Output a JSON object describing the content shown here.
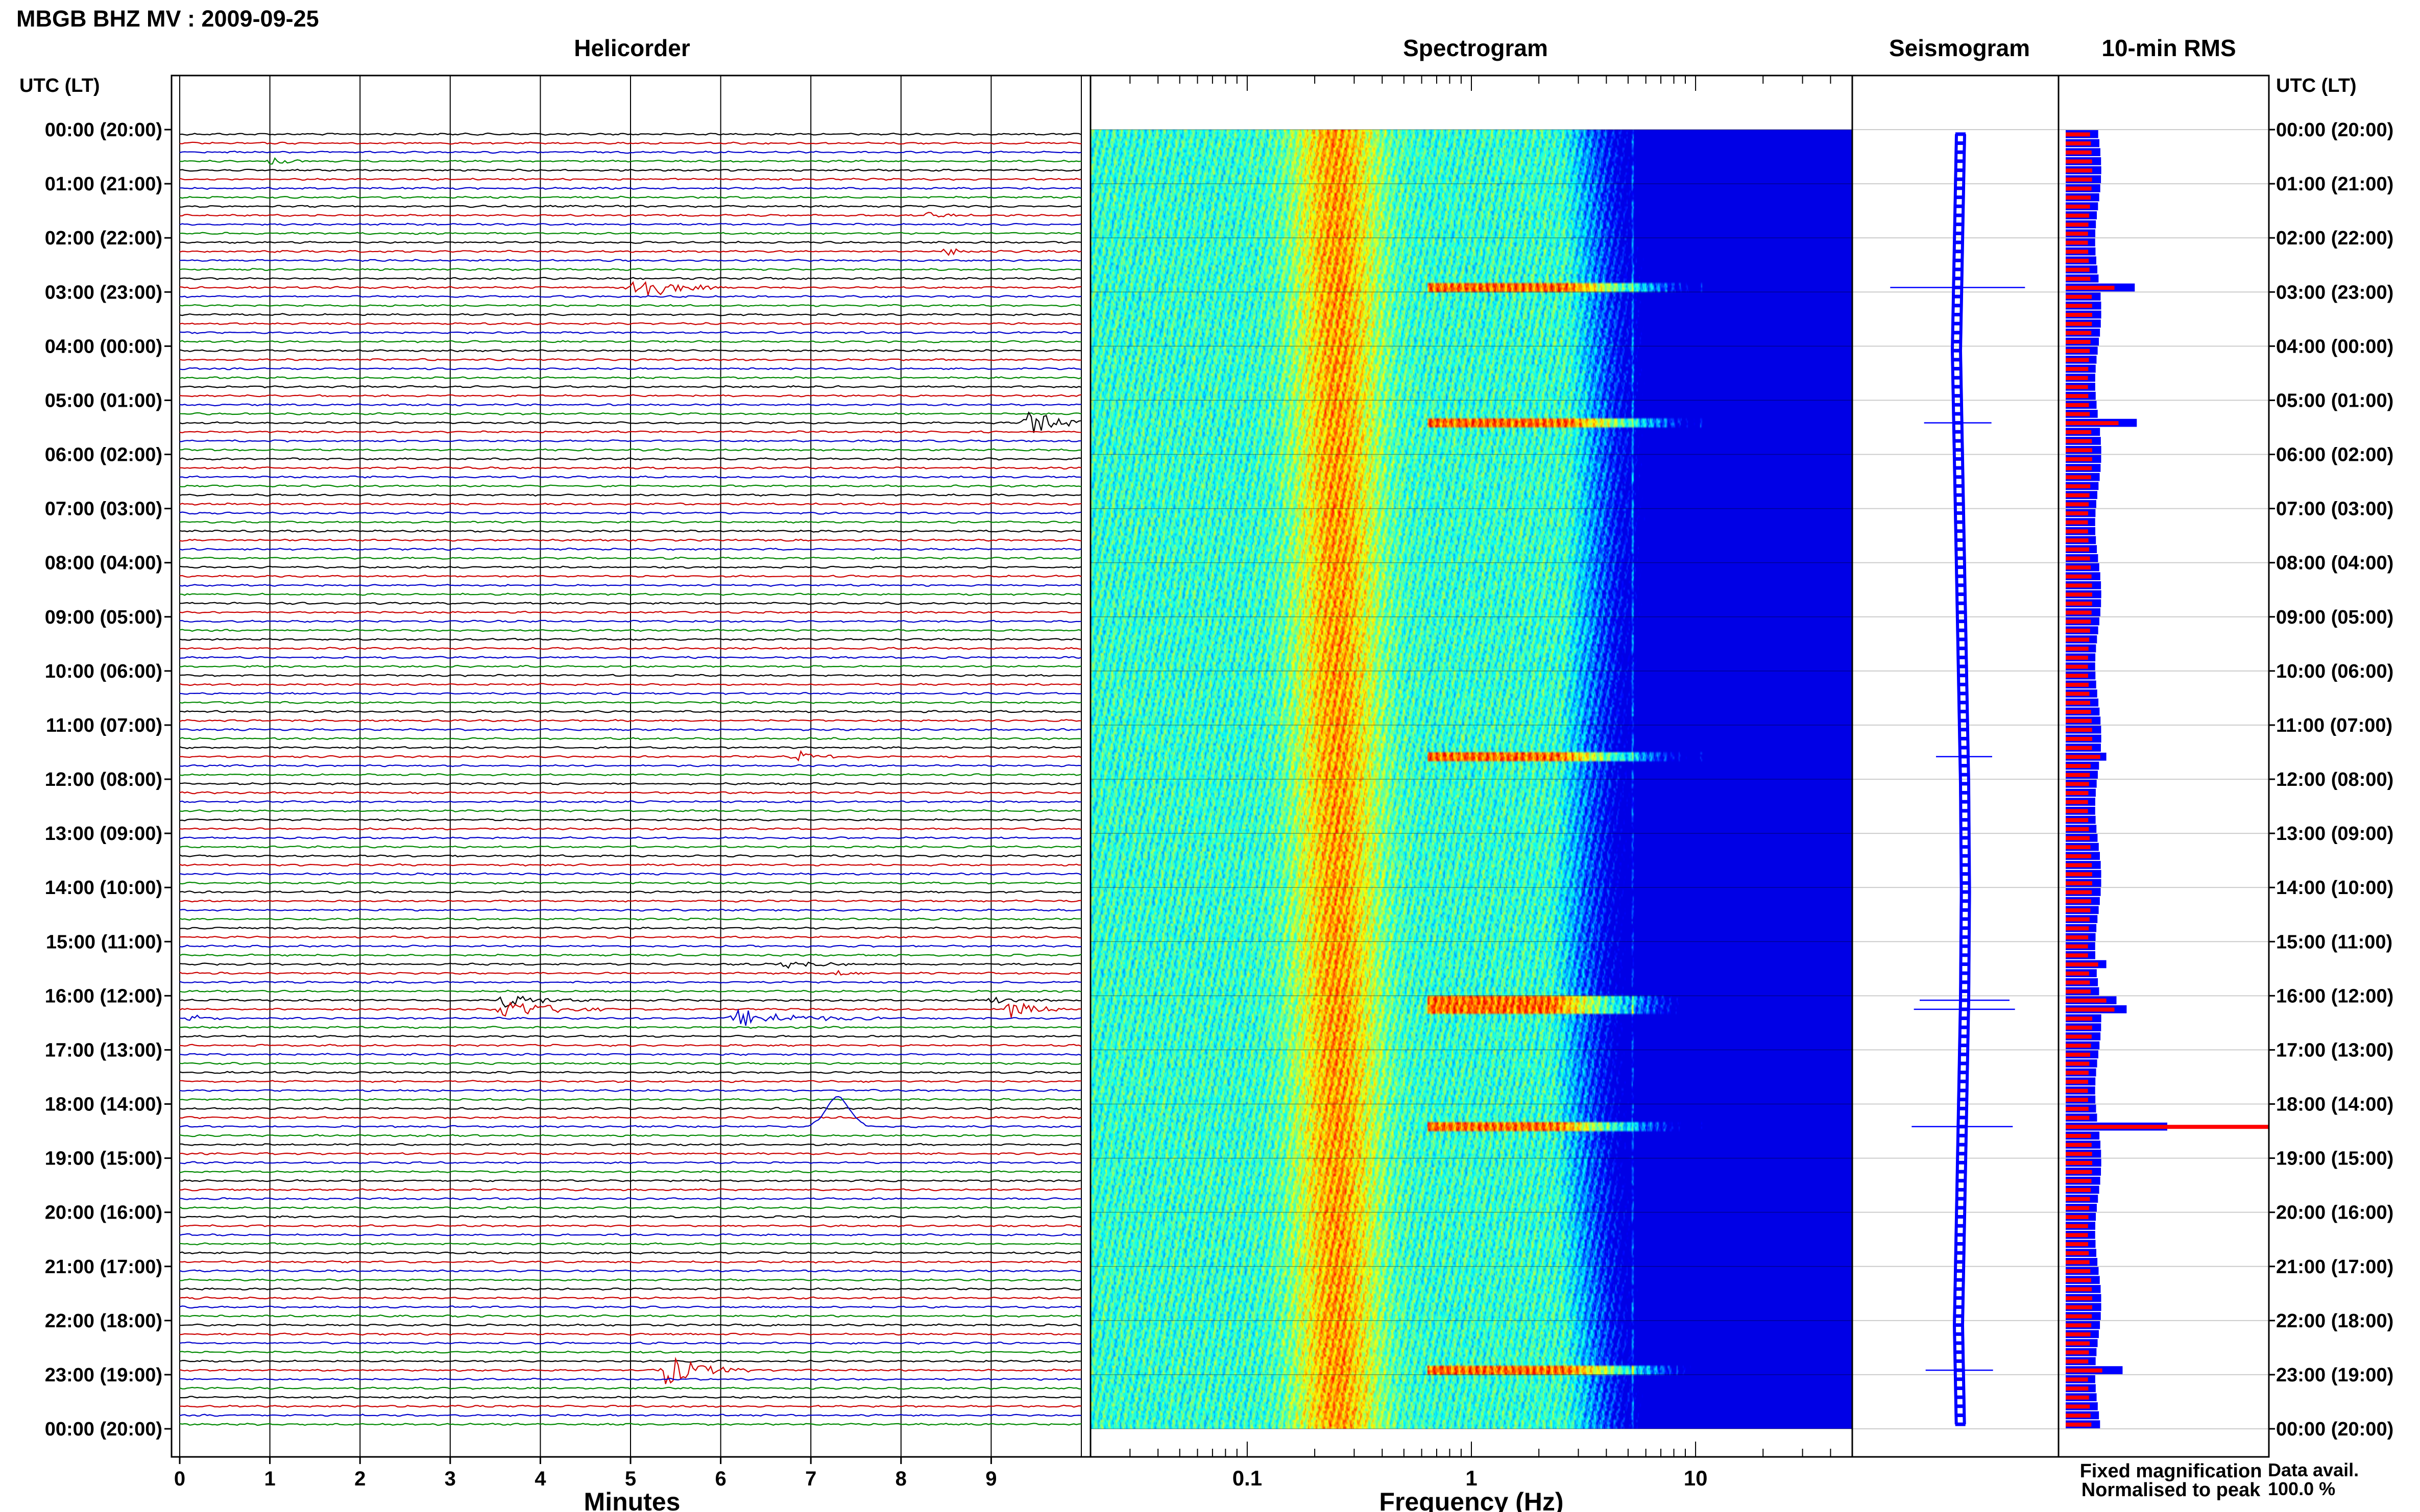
{
  "figure": {
    "title": "MBGB BHZ MV : 2009-09-25",
    "utc_header_left": "UTC (LT)",
    "utc_header_right": "UTC (LT)",
    "legend": {
      "fixed": "Fixed magnification",
      "normalised": "Normalised to peak",
      "fixed_color": "#0000ff",
      "normalised_color": "#ff0000"
    },
    "data_avail_label": "Data avail.",
    "data_avail_value": "100.0 %"
  },
  "chart_data": [
    {
      "type": "line",
      "panel": "helicorder",
      "title": "Helicorder",
      "xlabel": "Minutes",
      "xlim": [
        0,
        10
      ],
      "xticks": [
        "0",
        "1",
        "2",
        "3",
        "4",
        "5",
        "6",
        "7",
        "8",
        "9"
      ],
      "time_labels": [
        "00:00 (20:00)",
        "01:00 (21:00)",
        "02:00 (22:00)",
        "03:00 (23:00)",
        "04:00 (00:00)",
        "05:00 (01:00)",
        "06:00 (02:00)",
        "07:00 (03:00)",
        "08:00 (04:00)",
        "09:00 (05:00)",
        "10:00 (06:00)",
        "11:00 (07:00)",
        "12:00 (08:00)",
        "13:00 (09:00)",
        "14:00 (10:00)",
        "15:00 (11:00)",
        "16:00 (12:00)",
        "17:00 (13:00)",
        "18:00 (14:00)",
        "19:00 (15:00)",
        "20:00 (16:00)",
        "21:00 (17:00)",
        "22:00 (18:00)",
        "23:00 (19:00)",
        "00:00 (20:00)"
      ],
      "trace_colors": [
        "#000000",
        "#cc0000",
        "#0000cc",
        "#008800"
      ],
      "n_traces": 144,
      "events": [
        {
          "trace": 3,
          "minute": 1.0,
          "amp": 0.3,
          "dur": 0.5
        },
        {
          "trace": 9,
          "minute": 8.3,
          "amp": 0.2,
          "dur": 0.6
        },
        {
          "trace": 13,
          "minute": 8.5,
          "amp": 0.3,
          "dur": 0.7
        },
        {
          "trace": 17,
          "minute": 5.0,
          "amp": 1.5,
          "dur": 1.0
        },
        {
          "trace": 32,
          "minute": 9.4,
          "amp": 1.0,
          "dur": 1.1
        },
        {
          "trace": 69,
          "minute": 6.8,
          "amp": 0.9,
          "dur": 0.5
        },
        {
          "trace": 92,
          "minute": 6.7,
          "amp": 0.4,
          "dur": 0.8
        },
        {
          "trace": 93,
          "minute": 7.2,
          "amp": 0.3,
          "dur": 0.6
        },
        {
          "trace": 96,
          "minute": 3.6,
          "amp": 0.6,
          "dur": 1.0
        },
        {
          "trace": 96,
          "minute": 9.0,
          "amp": 0.4,
          "dur": 0.7
        },
        {
          "trace": 97,
          "minute": 3.6,
          "amp": 1.0,
          "dur": 1.2
        },
        {
          "trace": 97,
          "minute": 9.2,
          "amp": 0.8,
          "dur": 0.8
        },
        {
          "trace": 98,
          "minute": 0.1,
          "amp": 0.5,
          "dur": 0.4
        },
        {
          "trace": 98,
          "minute": 6.2,
          "amp": 0.8,
          "dur": 1.6
        },
        {
          "trace": 137,
          "minute": 5.4,
          "amp": 1.4,
          "dur": 1.0
        }
      ],
      "pulse": {
        "trace": 110,
        "minute": 7.3,
        "height": 1.0
      }
    },
    {
      "type": "heatmap",
      "panel": "spectrogram",
      "title": "Spectrogram",
      "xlabel": "Frequency (Hz)",
      "xscale": "log",
      "xlim": [
        0.02,
        50
      ],
      "xtick_labels": [
        "0.1",
        "1",
        "10"
      ],
      "colormap": "jet",
      "features": {
        "microseism_peak_hz": 0.25,
        "noise_rolloff_hz": 2.5,
        "spectral_lines_hz": [
          10.5,
          12.0,
          5.2
        ],
        "bright_rows": [
          17,
          32,
          69,
          96,
          97,
          110,
          137
        ]
      }
    },
    {
      "type": "line",
      "panel": "seismogram",
      "title": "Seismogram",
      "description_free": true,
      "drift": [
        0,
        -0.05,
        -0.1,
        -0.05,
        0.0,
        0.05,
        0.1,
        0.12,
        0.1,
        0.05,
        0.0,
        -0.05,
        0.0
      ],
      "spikes": [
        {
          "trace": 17,
          "width": 1.2
        },
        {
          "trace": 32,
          "width": 0.6
        },
        {
          "trace": 69,
          "width": 0.5
        },
        {
          "trace": 96,
          "width": 0.8
        },
        {
          "trace": 97,
          "width": 0.9
        },
        {
          "trace": 110,
          "width": 0.9
        },
        {
          "trace": 137,
          "width": 0.6
        }
      ]
    },
    {
      "type": "bar",
      "panel": "rms",
      "title": "10-min RMS",
      "orientation": "horizontal",
      "n_bars": 144,
      "baseline_fixed": 0.16,
      "baseline_normalised": 0.12,
      "peaks": [
        {
          "trace": 17,
          "fixed": 0.34,
          "normalised": 0.24
        },
        {
          "trace": 32,
          "fixed": 0.35,
          "normalised": 0.26
        },
        {
          "trace": 69,
          "fixed": 0.2,
          "normalised": 0.17
        },
        {
          "trace": 92,
          "fixed": 0.2,
          "normalised": 0.16
        },
        {
          "trace": 96,
          "fixed": 0.25,
          "normalised": 0.2
        },
        {
          "trace": 97,
          "fixed": 0.3,
          "normalised": 0.24
        },
        {
          "trace": 110,
          "fixed": 0.5,
          "normalised": 1.0
        },
        {
          "trace": 137,
          "fixed": 0.28,
          "normalised": 0.18
        }
      ]
    }
  ]
}
